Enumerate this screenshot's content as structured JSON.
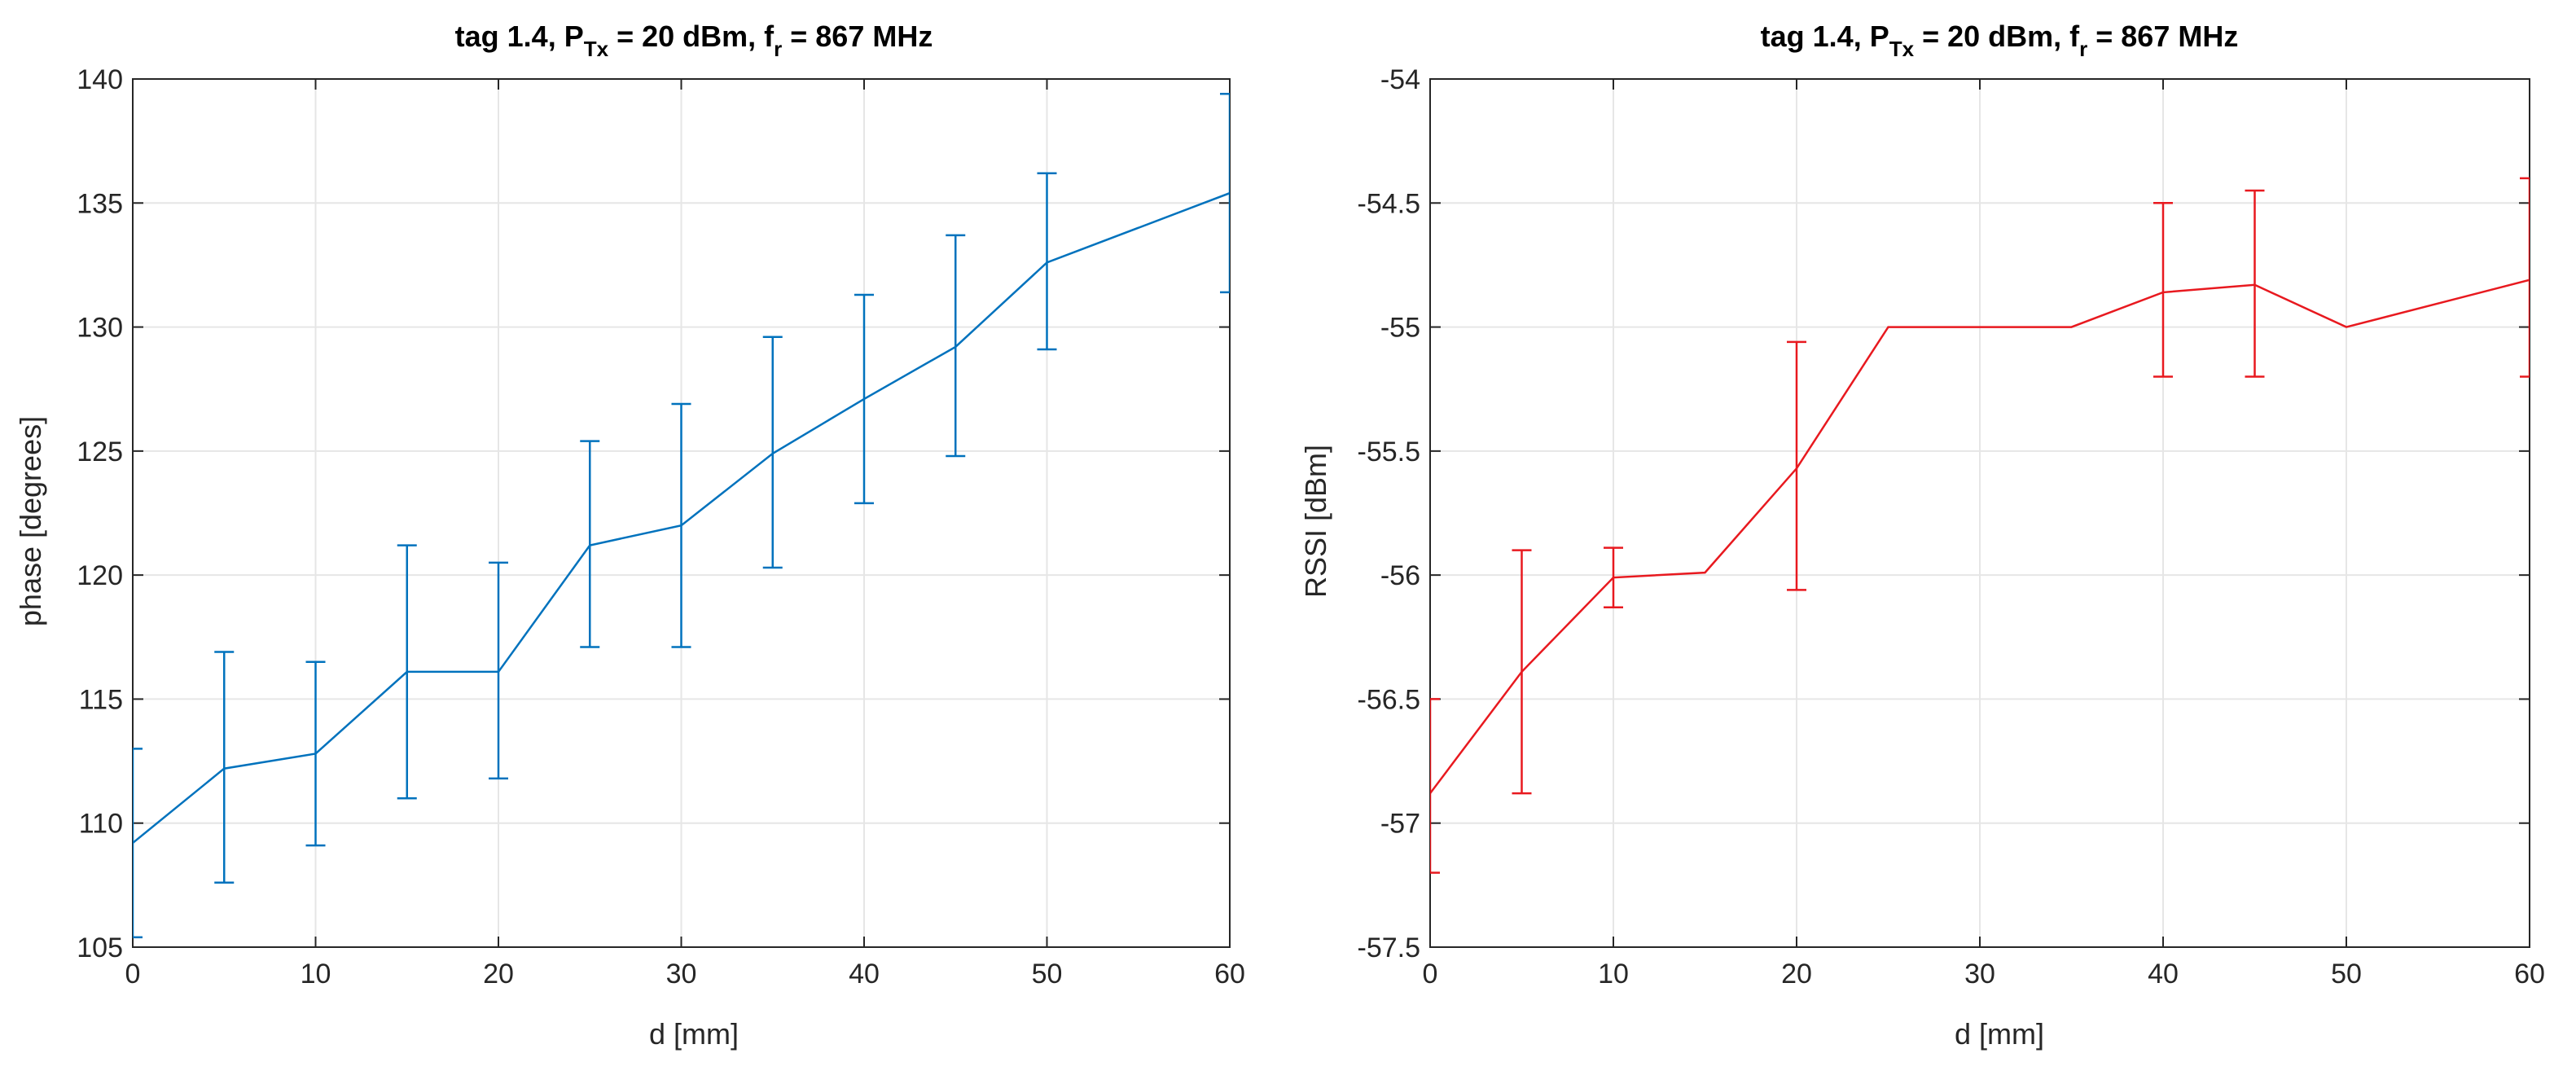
{
  "chart_data": [
    {
      "type": "line",
      "title": "tag 1.4, P_Tx = 20 dBm, f_r = 867 MHz",
      "title_parts": {
        "prefix": "tag 1.4, P",
        "p_sub": "Tx",
        "mid": " = 20 dBm, f",
        "f_sub": "r",
        "suffix": " = 867 MHz"
      },
      "xlabel": "d [mm]",
      "ylabel": "phase [degrees]",
      "xlim": [
        0,
        60
      ],
      "ylim": [
        105,
        140
      ],
      "xticks": [
        0,
        10,
        20,
        30,
        40,
        50,
        60
      ],
      "xtick_labels": [
        "0",
        "10",
        "20",
        "30",
        "40",
        "50",
        "60"
      ],
      "yticks": [
        105,
        110,
        115,
        120,
        125,
        130,
        135,
        140
      ],
      "ytick_labels": [
        "105",
        "110",
        "115",
        "120",
        "125",
        "130",
        "135",
        "140"
      ],
      "grid": true,
      "color": "#0072BD",
      "series": [
        {
          "name": "phase",
          "x": [
            0,
            5,
            10,
            15,
            20,
            25,
            30,
            35,
            40,
            45,
            50,
            60
          ],
          "y": [
            109.2,
            112.2,
            112.8,
            116.1,
            116.1,
            121.2,
            122.0,
            124.9,
            127.1,
            129.2,
            132.6,
            135.4
          ],
          "err_low": [
            105.4,
            107.6,
            109.1,
            111.0,
            111.8,
            117.1,
            117.1,
            120.3,
            122.9,
            124.8,
            129.1,
            131.4
          ],
          "err_high": [
            113.0,
            116.9,
            116.5,
            121.2,
            120.5,
            125.4,
            126.9,
            129.6,
            131.3,
            133.7,
            136.2,
            139.4
          ]
        }
      ]
    },
    {
      "type": "line",
      "title": "tag 1.4, P_Tx = 20 dBm, f_r = 867 MHz",
      "title_parts": {
        "prefix": "tag 1.4, P",
        "p_sub": "Tx",
        "mid": " = 20 dBm, f",
        "f_sub": "r",
        "suffix": " = 867 MHz"
      },
      "xlabel": "d [mm]",
      "ylabel": "RSSI [dBm]",
      "xlim": [
        0,
        60
      ],
      "ylim": [
        -57.5,
        -54
      ],
      "xticks": [
        0,
        10,
        20,
        30,
        40,
        50,
        60
      ],
      "xtick_labels": [
        "0",
        "10",
        "20",
        "30",
        "40",
        "50",
        "60"
      ],
      "yticks": [
        -57.5,
        -57,
        -56.5,
        -56,
        -55.5,
        -55,
        -54.5,
        -54
      ],
      "ytick_labels": [
        "-57.5",
        "-57",
        "-56.5",
        "-56",
        "-55.5",
        "-55",
        "-54.5",
        "-54"
      ],
      "grid": true,
      "color": "#E8191F",
      "series": [
        {
          "name": "RSSI",
          "x": [
            0,
            5,
            10,
            15,
            20,
            25,
            35,
            40,
            45,
            50,
            60
          ],
          "y": [
            -56.88,
            -56.39,
            -56.01,
            -55.99,
            -55.57,
            -55.0,
            -55.0,
            -54.86,
            -54.83,
            -55.0,
            -54.81
          ],
          "err_low": [
            -57.2,
            -56.88,
            -56.13,
            null,
            -56.06,
            null,
            null,
            -55.2,
            -55.2,
            null,
            -55.2
          ],
          "err_high": [
            -56.5,
            -55.9,
            -55.89,
            null,
            -55.06,
            null,
            null,
            -54.5,
            -54.45,
            null,
            -54.4
          ]
        }
      ]
    }
  ]
}
